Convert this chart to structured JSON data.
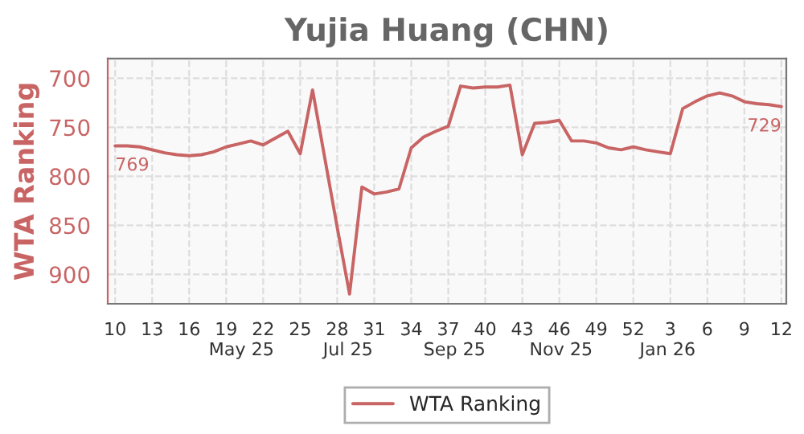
{
  "chart_data": {
    "type": "line",
    "title": "Yujia Huang (CHN)",
    "ylabel": "WTA Ranking",
    "categories": [
      "10",
      null,
      null,
      "13",
      null,
      null,
      "16",
      null,
      null,
      "19",
      null,
      null,
      "22",
      null,
      null,
      "25",
      null,
      null,
      "28",
      null,
      null,
      "31",
      null,
      null,
      "34",
      null,
      null,
      "37",
      null,
      null,
      "40",
      null,
      null,
      "43",
      null,
      null,
      "46",
      null,
      null,
      "49",
      null,
      null,
      "52",
      null,
      null,
      "3",
      null,
      null,
      "6",
      null,
      null,
      "9",
      null,
      null,
      "12"
    ],
    "series": [
      {
        "name": "WTA Ranking",
        "color": "#c86464",
        "values": [
          769,
          769,
          770,
          773,
          776,
          778,
          779,
          778,
          775,
          770,
          767,
          764,
          768,
          761,
          754,
          777,
          712,
          782,
          852,
          920,
          811,
          818,
          816,
          813,
          771,
          760,
          754,
          749,
          708,
          710,
          709,
          709,
          707,
          778,
          746,
          745,
          743,
          764,
          764,
          766,
          771,
          773,
          770,
          773,
          775,
          777,
          731,
          724,
          718,
          715,
          718,
          724,
          726,
          727,
          729
        ],
        "value_labels": [
          "769",
          null,
          null,
          null,
          null,
          null,
          null,
          null,
          null,
          null,
          null,
          null,
          null,
          null,
          null,
          null,
          null,
          null,
          null,
          null,
          null,
          null,
          null,
          null,
          null,
          null,
          null,
          null,
          null,
          null,
          null,
          null,
          null,
          null,
          null,
          null,
          null,
          null,
          null,
          null,
          null,
          null,
          null,
          null,
          null,
          null,
          null,
          null,
          null,
          null,
          null,
          null,
          null,
          null,
          "729"
        ]
      }
    ],
    "annotations": [
      "May 25",
      "Jul 25",
      "Sep 25",
      "Nov 25",
      "Jan 26"
    ],
    "ylim": [
      930,
      680
    ],
    "yticks": [
      700,
      750,
      800,
      850,
      900
    ],
    "grid": true,
    "legend": "bottom",
    "marker": "none",
    "line_style": "solid"
  }
}
